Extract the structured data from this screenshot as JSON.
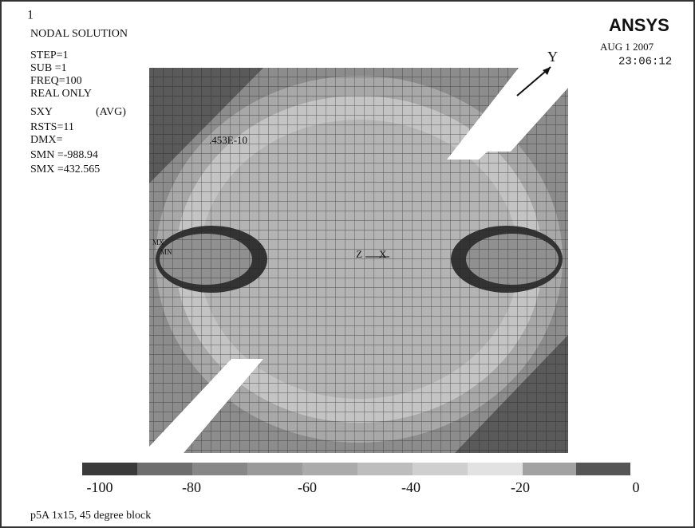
{
  "window_number": "1",
  "header": {
    "title": "NODAL SOLUTION",
    "logo": "ANSYS",
    "date": "AUG  1 2007",
    "time": "23:06:12"
  },
  "info": [
    "STEP=1",
    "SUB =1",
    "FREQ=100",
    "REAL  ONLY",
    "SXY",
    "(AVG)",
    "RSTS=11",
    "DMX=",
    "SMN =-988.94",
    "SMX =432.565"
  ],
  "model": {
    "dmx_value": ".453E-10",
    "axis_y": "Y",
    "axis_z": "Z",
    "axis_x": "X",
    "max_label": "MX",
    "min_label": "MN"
  },
  "legend": {
    "labels": [
      "-100",
      "-80",
      "-60",
      "-40",
      "-20",
      "0"
    ]
  },
  "footer": "p5A  1x15, 45 degree block"
}
